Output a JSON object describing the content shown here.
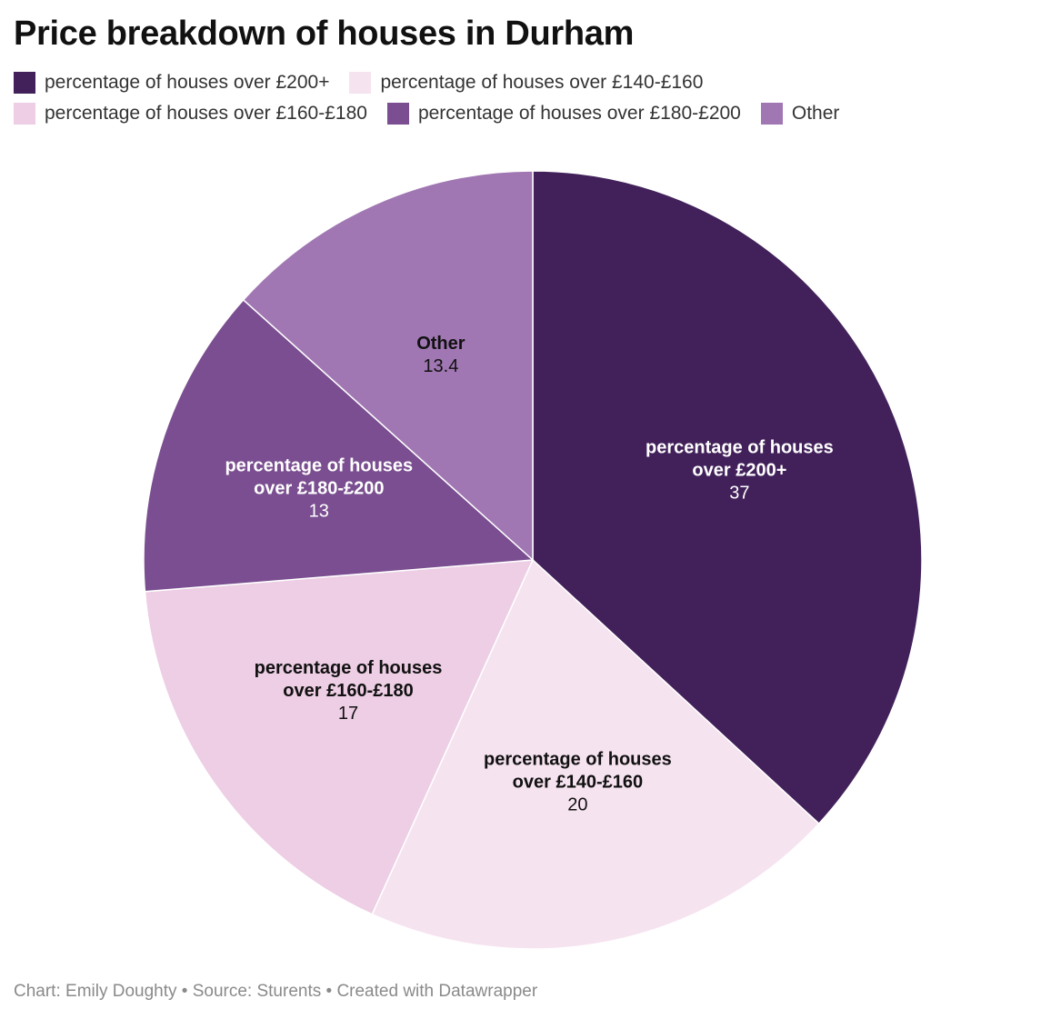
{
  "chart_data": {
    "type": "pie",
    "title": "Price breakdown of houses in Durham",
    "slices": [
      {
        "label": "percentage of houses over £200+",
        "label_lines": [
          "percentage of houses",
          "over £200+"
        ],
        "value": 37,
        "value_text": "37",
        "color": "#42215a",
        "text_color": "#ffffff"
      },
      {
        "label": "percentage of houses over £140-£160",
        "label_lines": [
          "percentage of houses",
          "over £140-£160"
        ],
        "value": 20,
        "value_text": "20",
        "color": "#f6e3f0",
        "text_color": "#111111"
      },
      {
        "label": "percentage of houses over £160-£180",
        "label_lines": [
          "percentage of houses",
          "over £160-£180"
        ],
        "value": 17,
        "value_text": "17",
        "color": "#edcee4",
        "text_color": "#111111"
      },
      {
        "label": "percentage of houses over £180-£200",
        "label_lines": [
          "percentage of houses",
          "over £180-£200"
        ],
        "value": 13,
        "value_text": "13",
        "color": "#7a4e90",
        "text_color": "#ffffff"
      },
      {
        "label": "Other",
        "label_lines": [
          "Other"
        ],
        "value": 13.4,
        "value_text": "13.4",
        "color": "#a077b2",
        "text_color": "#111111"
      }
    ],
    "legend": [
      {
        "label": "percentage of houses over £200+",
        "color": "#42215a"
      },
      {
        "label": "percentage of houses over £140-£160",
        "color": "#f6e3f0"
      },
      {
        "label": "percentage of houses over £160-£180",
        "color": "#edcee4"
      },
      {
        "label": "percentage of houses over £180-£200",
        "color": "#7a4e90"
      },
      {
        "label": "Other",
        "color": "#a077b2"
      }
    ],
    "legend_placement": "top-left",
    "start_angle": "12 o'clock",
    "direction": "clockwise"
  },
  "footer": {
    "text": "Chart: Emily Doughty • Source: Sturents • Created with Datawrapper"
  }
}
